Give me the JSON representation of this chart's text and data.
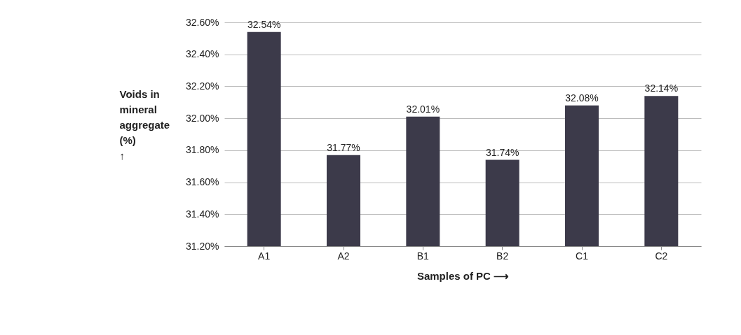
{
  "chart_data": {
    "type": "bar",
    "xlabel": "Samples of PC ⟶",
    "ylabel": "Voids in\nmineral\naggregate\n(%)\n↑",
    "categories": [
      "A1",
      "A2",
      "B1",
      "B2",
      "C1",
      "C2"
    ],
    "values": [
      32.54,
      31.77,
      32.01,
      31.74,
      32.08,
      32.14
    ],
    "value_labels": [
      "32.54%",
      "31.77%",
      "32.01%",
      "31.74%",
      "32.08%",
      "32.14%"
    ],
    "color": "#3c3a4a",
    "ylim": [
      31.2,
      32.6
    ],
    "yticks": [
      {
        "value": 31.2,
        "label": "31.20%"
      },
      {
        "value": 31.4,
        "label": "31.40%"
      },
      {
        "value": 31.6,
        "label": "31.60%"
      },
      {
        "value": 31.8,
        "label": "31.80%"
      },
      {
        "value": 32.0,
        "label": "32.00%"
      },
      {
        "value": 32.2,
        "label": "32.20%"
      },
      {
        "value": 32.4,
        "label": "32.40%"
      },
      {
        "value": 32.6,
        "label": "32.60%"
      }
    ],
    "grid": "y"
  }
}
